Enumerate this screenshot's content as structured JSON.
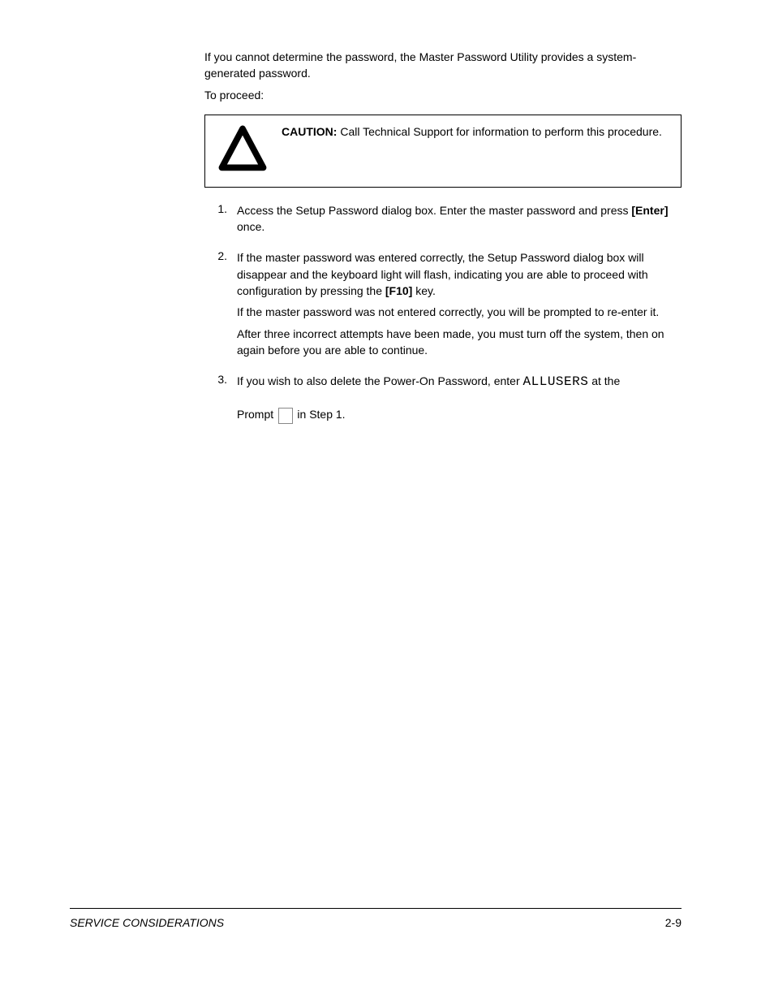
{
  "intro": {
    "line1": "If you cannot determine the password, the Master Password Utility provides a system-generated password.",
    "line2": "To proceed:"
  },
  "caution": {
    "label": "CAUTION:",
    "text": " Call Technical Support for information to perform this procedure."
  },
  "steps": [
    {
      "num": "1.",
      "paras": [
        [
          {
            "t": "plain",
            "v": "Access the Setup Password dialog box. Enter the master password and press "
          },
          {
            "t": "bold",
            "v": "[Enter]"
          },
          {
            "t": "plain",
            "v": " once."
          }
        ]
      ]
    },
    {
      "num": "2.",
      "paras": [
        [
          {
            "t": "plain",
            "v": "If the master password was entered correctly, the Setup Password dialog box will disappear and the keyboard light will flash, indicating you are able to proceed with configuration by pressing the "
          },
          {
            "t": "bold",
            "v": "[F10]"
          },
          {
            "t": "plain",
            "v": " key."
          }
        ],
        [
          {
            "t": "plain",
            "v": "If the master password was not entered correctly, you will be prompted to re-enter it."
          }
        ],
        [
          {
            "t": "plain",
            "v": "After three incorrect attempts have been made, you must turn off the system, then on again before you are able to continue."
          }
        ]
      ]
    },
    {
      "num": "3.",
      "paras": [
        [
          {
            "t": "plain",
            "v": "If you wish to also delete the Power-On Password, enter "
          },
          {
            "t": "mono",
            "v": "ALLUSERS"
          },
          {
            "t": "plain",
            "v": " at the"
          }
        ]
      ]
    },
    {
      "num": "",
      "paras": [
        [
          {
            "t": "plain",
            "v": "Prompt "
          },
          {
            "t": "key",
            "v": ""
          },
          {
            "t": "plain",
            "v": " in Step 1."
          }
        ]
      ]
    }
  ],
  "icon": {
    "triangle_stroke": "#000000",
    "triangle_stroke_width": 8,
    "key_glyph": " "
  },
  "footer": {
    "left": "SERVICE CONSIDERATIONS",
    "right": "2-9"
  },
  "colors": {
    "page_bg": "#ffffff",
    "text": "#000000",
    "border": "#000000"
  }
}
